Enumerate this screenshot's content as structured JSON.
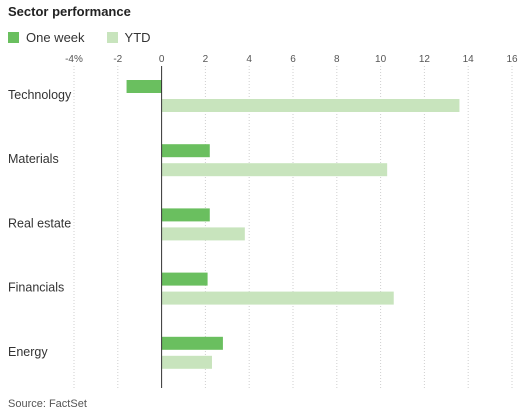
{
  "title": "Sector performance",
  "source": "Source: FactSet",
  "colors": {
    "one_week": "#6abf5f",
    "ytd": "#c8e4bd"
  },
  "chart_data": {
    "type": "bar",
    "orientation": "horizontal",
    "title": "Sector performance",
    "categories": [
      "Technology",
      "Materials",
      "Real estate",
      "Financials",
      "Energy"
    ],
    "series": [
      {
        "name": "One week",
        "values": [
          -1.6,
          2.2,
          2.2,
          2.1,
          2.8
        ]
      },
      {
        "name": "YTD",
        "values": [
          13.6,
          10.3,
          3.8,
          10.6,
          2.3
        ]
      }
    ],
    "xlim": [
      -4,
      16
    ],
    "xticks": [
      -4,
      -2,
      0,
      2,
      4,
      6,
      8,
      10,
      12,
      14,
      16
    ],
    "xtick_labels": [
      "-4%",
      "-2",
      "0",
      "2",
      "4",
      "6",
      "8",
      "10",
      "12",
      "14",
      "16"
    ],
    "legend_position": "top-left",
    "grid": true
  }
}
